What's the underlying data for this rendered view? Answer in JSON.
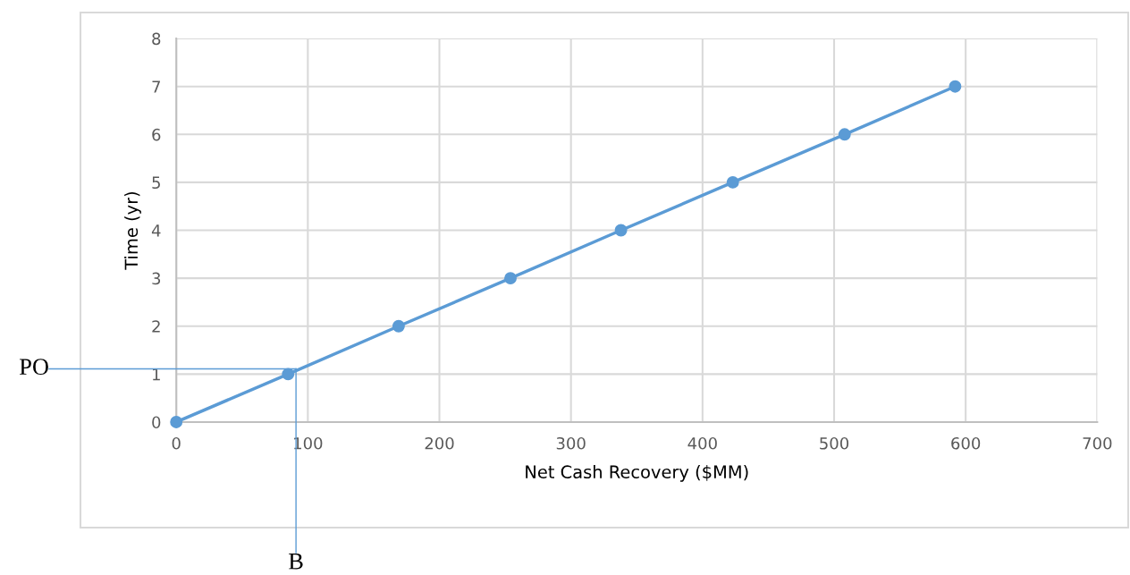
{
  "chart_data": {
    "type": "line",
    "xlabel": "Net Cash Recovery ($MM)",
    "ylabel": "Time (yr)",
    "x": [
      0,
      85,
      169,
      254,
      338,
      423,
      508,
      592
    ],
    "series": [
      {
        "color": "#5b9bd5",
        "values": [
          0,
          1,
          2,
          3,
          4,
          5,
          6,
          7
        ]
      }
    ],
    "marker": "circle",
    "line_style": "solid",
    "grid": true,
    "xlim": [
      0,
      700
    ],
    "xticks": [
      0,
      100,
      200,
      300,
      400,
      500,
      600,
      700
    ],
    "ylim": [
      0,
      8
    ],
    "yticks": [
      0,
      1,
      2,
      3,
      4,
      5,
      6,
      7,
      8
    ],
    "ref_lines": [
      {
        "axis": "y",
        "value": 1.11,
        "label": "PO",
        "color": "#5b9bd5"
      },
      {
        "axis": "x",
        "value": 91,
        "label": "B",
        "color": "#5b9bd5"
      }
    ]
  }
}
